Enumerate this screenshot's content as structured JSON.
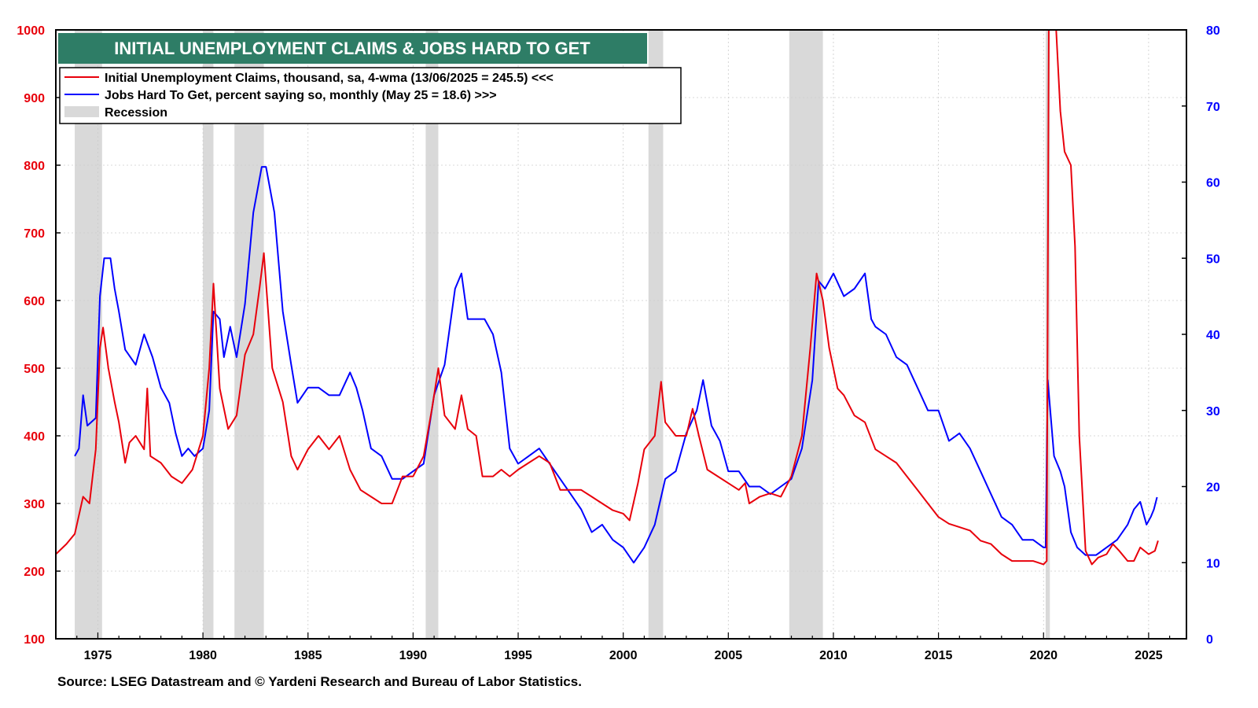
{
  "chart_data": {
    "type": "line",
    "title": "INITIAL UNEMPLOYMENT CLAIMS & JOBS HARD TO GET",
    "source": "Source: LSEG Datastream and © Yardeni Research and Bureau of Labor Statistics.",
    "x_ticks": [
      "1975",
      "1980",
      "1985",
      "1990",
      "1995",
      "2000",
      "2005",
      "2010",
      "2015",
      "2020",
      "2025"
    ],
    "xlim": [
      1973.0,
      2026.8
    ],
    "y_left": {
      "ticks": [
        "100",
        "200",
        "300",
        "400",
        "500",
        "600",
        "700",
        "800",
        "900",
        "1000"
      ],
      "ylim": [
        100,
        1000
      ],
      "color": "#e8000b"
    },
    "y_right": {
      "ticks": [
        "0",
        "10",
        "20",
        "30",
        "40",
        "50",
        "60",
        "70",
        "80"
      ],
      "ylim": [
        0,
        80
      ],
      "color": "#0000ff"
    },
    "grid": true,
    "legend": {
      "placement": "top-left",
      "entries": [
        {
          "label": "Initial Unemployment Claims, thousand,  sa, 4-wma (13/06/2025 = 245.5) <<<",
          "color": "#e8000b",
          "kind": "line"
        },
        {
          "label": "Jobs Hard To Get, percent saying so, monthly (May 25 = 18.6) >>>",
          "color": "#0000ff",
          "kind": "line"
        },
        {
          "label": "Recession",
          "color": "#d9d9d9",
          "kind": "box"
        }
      ]
    },
    "recessions": [
      [
        1973.9,
        1975.2
      ],
      [
        1980.0,
        1980.5
      ],
      [
        1981.5,
        1982.9
      ],
      [
        1990.6,
        1991.2
      ],
      [
        2001.2,
        2001.9
      ],
      [
        2007.9,
        2009.5
      ],
      [
        2020.1,
        2020.3
      ]
    ],
    "series": [
      {
        "name": "Initial Unemployment Claims, thousand,  sa, 4-wma (13/06/2025 = 245.5) <<<",
        "axis": "left",
        "color": "#e8000b",
        "points": [
          [
            1973.0,
            225
          ],
          [
            1973.5,
            240
          ],
          [
            1973.9,
            255
          ],
          [
            1974.3,
            310
          ],
          [
            1974.6,
            300
          ],
          [
            1974.9,
            380
          ],
          [
            1975.1,
            530
          ],
          [
            1975.25,
            560
          ],
          [
            1975.5,
            500
          ],
          [
            1975.8,
            450
          ],
          [
            1976.0,
            420
          ],
          [
            1976.3,
            360
          ],
          [
            1976.5,
            390
          ],
          [
            1976.8,
            400
          ],
          [
            1977.2,
            380
          ],
          [
            1977.35,
            470
          ],
          [
            1977.5,
            370
          ],
          [
            1978.0,
            360
          ],
          [
            1978.5,
            340
          ],
          [
            1979.0,
            330
          ],
          [
            1979.5,
            350
          ],
          [
            1980.0,
            400
          ],
          [
            1980.3,
            500
          ],
          [
            1980.5,
            625
          ],
          [
            1980.8,
            470
          ],
          [
            1981.2,
            410
          ],
          [
            1981.6,
            430
          ],
          [
            1982.0,
            520
          ],
          [
            1982.4,
            550
          ],
          [
            1982.7,
            620
          ],
          [
            1982.9,
            670
          ],
          [
            1983.3,
            500
          ],
          [
            1983.8,
            450
          ],
          [
            1984.2,
            370
          ],
          [
            1984.5,
            350
          ],
          [
            1985.0,
            380
          ],
          [
            1985.5,
            400
          ],
          [
            1986.0,
            380
          ],
          [
            1986.5,
            400
          ],
          [
            1987.0,
            350
          ],
          [
            1987.5,
            320
          ],
          [
            1988.0,
            310
          ],
          [
            1988.5,
            300
          ],
          [
            1989.0,
            300
          ],
          [
            1989.5,
            340
          ],
          [
            1990.0,
            340
          ],
          [
            1990.5,
            370
          ],
          [
            1990.9,
            440
          ],
          [
            1991.2,
            500
          ],
          [
            1991.5,
            430
          ],
          [
            1992.0,
            410
          ],
          [
            1992.3,
            460
          ],
          [
            1992.6,
            410
          ],
          [
            1993.0,
            400
          ],
          [
            1993.3,
            340
          ],
          [
            1993.8,
            340
          ],
          [
            1994.2,
            350
          ],
          [
            1994.6,
            340
          ],
          [
            1995.0,
            350
          ],
          [
            1995.5,
            360
          ],
          [
            1996.0,
            370
          ],
          [
            1996.5,
            360
          ],
          [
            1997.0,
            320
          ],
          [
            1997.5,
            320
          ],
          [
            1998.0,
            320
          ],
          [
            1998.5,
            310
          ],
          [
            1999.0,
            300
          ],
          [
            1999.5,
            290
          ],
          [
            2000.0,
            285
          ],
          [
            2000.3,
            275
          ],
          [
            2000.7,
            330
          ],
          [
            2001.0,
            380
          ],
          [
            2001.5,
            400
          ],
          [
            2001.8,
            480
          ],
          [
            2002.0,
            420
          ],
          [
            2002.5,
            400
          ],
          [
            2003.0,
            400
          ],
          [
            2003.3,
            440
          ],
          [
            2003.6,
            400
          ],
          [
            2004.0,
            350
          ],
          [
            2004.5,
            340
          ],
          [
            2005.0,
            330
          ],
          [
            2005.5,
            320
          ],
          [
            2005.8,
            330
          ],
          [
            2006.0,
            300
          ],
          [
            2006.5,
            310
          ],
          [
            2007.0,
            315
          ],
          [
            2007.5,
            310
          ],
          [
            2008.0,
            340
          ],
          [
            2008.5,
            400
          ],
          [
            2008.9,
            530
          ],
          [
            2009.2,
            640
          ],
          [
            2009.5,
            600
          ],
          [
            2009.8,
            530
          ],
          [
            2010.2,
            470
          ],
          [
            2010.5,
            460
          ],
          [
            2011.0,
            430
          ],
          [
            2011.5,
            420
          ],
          [
            2012.0,
            380
          ],
          [
            2012.5,
            370
          ],
          [
            2013.0,
            360
          ],
          [
            2013.5,
            340
          ],
          [
            2014.0,
            320
          ],
          [
            2014.5,
            300
          ],
          [
            2015.0,
            280
          ],
          [
            2015.5,
            270
          ],
          [
            2016.0,
            265
          ],
          [
            2016.5,
            260
          ],
          [
            2017.0,
            245
          ],
          [
            2017.5,
            240
          ],
          [
            2018.0,
            225
          ],
          [
            2018.5,
            215
          ],
          [
            2019.0,
            215
          ],
          [
            2019.5,
            215
          ],
          [
            2020.0,
            210
          ],
          [
            2020.15,
            215
          ],
          [
            2020.25,
            1000
          ],
          [
            2020.6,
            1000
          ],
          [
            2020.8,
            880
          ],
          [
            2021.0,
            820
          ],
          [
            2021.3,
            800
          ],
          [
            2021.5,
            680
          ],
          [
            2021.7,
            400
          ],
          [
            2022.0,
            230
          ],
          [
            2022.3,
            210
          ],
          [
            2022.6,
            220
          ],
          [
            2023.0,
            225
          ],
          [
            2023.3,
            240
          ],
          [
            2023.6,
            230
          ],
          [
            2024.0,
            215
          ],
          [
            2024.3,
            215
          ],
          [
            2024.6,
            235
          ],
          [
            2025.0,
            225
          ],
          [
            2025.3,
            230
          ],
          [
            2025.45,
            245
          ]
        ]
      },
      {
        "name": "Jobs Hard To Get, percent saying so, monthly (May 25 = 18.6) >>>",
        "axis": "right",
        "color": "#0000ff",
        "points": [
          [
            1973.9,
            24
          ],
          [
            1974.1,
            25
          ],
          [
            1974.3,
            32
          ],
          [
            1974.5,
            28
          ],
          [
            1974.9,
            29
          ],
          [
            1975.1,
            45
          ],
          [
            1975.3,
            50
          ],
          [
            1975.6,
            50
          ],
          [
            1975.8,
            46
          ],
          [
            1976.0,
            43
          ],
          [
            1976.3,
            38
          ],
          [
            1976.8,
            36
          ],
          [
            1977.2,
            40
          ],
          [
            1977.6,
            37
          ],
          [
            1978.0,
            33
          ],
          [
            1978.4,
            31
          ],
          [
            1978.7,
            27
          ],
          [
            1979.0,
            24
          ],
          [
            1979.3,
            25
          ],
          [
            1979.6,
            24
          ],
          [
            1980.0,
            25
          ],
          [
            1980.3,
            30
          ],
          [
            1980.5,
            43
          ],
          [
            1980.8,
            42
          ],
          [
            1981.0,
            37
          ],
          [
            1981.3,
            41
          ],
          [
            1981.6,
            37
          ],
          [
            1982.0,
            44
          ],
          [
            1982.4,
            56
          ],
          [
            1982.8,
            62
          ],
          [
            1983.0,
            62
          ],
          [
            1983.4,
            56
          ],
          [
            1983.8,
            43
          ],
          [
            1984.2,
            36
          ],
          [
            1984.5,
            31
          ],
          [
            1985.0,
            33
          ],
          [
            1985.5,
            33
          ],
          [
            1986.0,
            32
          ],
          [
            1986.5,
            32
          ],
          [
            1987.0,
            35
          ],
          [
            1987.3,
            33
          ],
          [
            1987.6,
            30
          ],
          [
            1988.0,
            25
          ],
          [
            1988.5,
            24
          ],
          [
            1989.0,
            21
          ],
          [
            1989.5,
            21
          ],
          [
            1990.0,
            22
          ],
          [
            1990.5,
            23
          ],
          [
            1991.0,
            32
          ],
          [
            1991.5,
            36
          ],
          [
            1992.0,
            46
          ],
          [
            1992.3,
            48
          ],
          [
            1992.6,
            42
          ],
          [
            1993.0,
            42
          ],
          [
            1993.4,
            42
          ],
          [
            1993.8,
            40
          ],
          [
            1994.2,
            35
          ],
          [
            1994.6,
            25
          ],
          [
            1995.0,
            23
          ],
          [
            1995.5,
            24
          ],
          [
            1996.0,
            25
          ],
          [
            1996.5,
            23
          ],
          [
            1997.0,
            21
          ],
          [
            1997.5,
            19
          ],
          [
            1998.0,
            17
          ],
          [
            1998.5,
            14
          ],
          [
            1999.0,
            15
          ],
          [
            1999.5,
            13
          ],
          [
            2000.0,
            12
          ],
          [
            2000.5,
            10
          ],
          [
            2001.0,
            12
          ],
          [
            2001.5,
            15
          ],
          [
            2002.0,
            21
          ],
          [
            2002.5,
            22
          ],
          [
            2003.0,
            27
          ],
          [
            2003.5,
            30
          ],
          [
            2003.8,
            34
          ],
          [
            2004.2,
            28
          ],
          [
            2004.6,
            26
          ],
          [
            2005.0,
            22
          ],
          [
            2005.5,
            22
          ],
          [
            2006.0,
            20
          ],
          [
            2006.5,
            20
          ],
          [
            2007.0,
            19
          ],
          [
            2007.5,
            20
          ],
          [
            2008.0,
            21
          ],
          [
            2008.5,
            25
          ],
          [
            2009.0,
            34
          ],
          [
            2009.3,
            47
          ],
          [
            2009.6,
            46
          ],
          [
            2010.0,
            48
          ],
          [
            2010.5,
            45
          ],
          [
            2011.0,
            46
          ],
          [
            2011.5,
            48
          ],
          [
            2011.8,
            42
          ],
          [
            2012.0,
            41
          ],
          [
            2012.5,
            40
          ],
          [
            2013.0,
            37
          ],
          [
            2013.5,
            36
          ],
          [
            2014.0,
            33
          ],
          [
            2014.5,
            30
          ],
          [
            2015.0,
            30
          ],
          [
            2015.5,
            26
          ],
          [
            2016.0,
            27
          ],
          [
            2016.5,
            25
          ],
          [
            2017.0,
            22
          ],
          [
            2017.5,
            19
          ],
          [
            2018.0,
            16
          ],
          [
            2018.5,
            15
          ],
          [
            2019.0,
            13
          ],
          [
            2019.5,
            13
          ],
          [
            2020.0,
            12
          ],
          [
            2020.1,
            12
          ],
          [
            2020.2,
            34
          ],
          [
            2020.5,
            24
          ],
          [
            2020.8,
            22
          ],
          [
            2021.0,
            20
          ],
          [
            2021.3,
            14
          ],
          [
            2021.6,
            12
          ],
          [
            2022.0,
            11
          ],
          [
            2022.5,
            11
          ],
          [
            2023.0,
            12
          ],
          [
            2023.5,
            13
          ],
          [
            2024.0,
            15
          ],
          [
            2024.3,
            17
          ],
          [
            2024.6,
            18
          ],
          [
            2024.9,
            15
          ],
          [
            2025.1,
            16
          ],
          [
            2025.25,
            17
          ],
          [
            2025.4,
            18.6
          ]
        ]
      }
    ]
  }
}
